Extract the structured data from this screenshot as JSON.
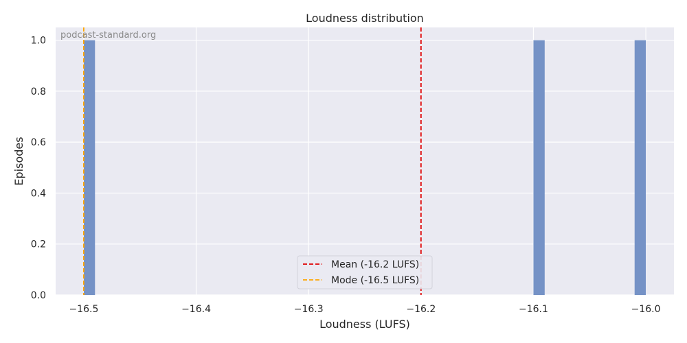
{
  "chart_data": {
    "type": "bar",
    "title": "Loudness distribution",
    "xlabel": "Loudness (LUFS)",
    "ylabel": "Episodes",
    "watermark": "podcast-standard.org",
    "xlim": [
      -16.525,
      -15.975
    ],
    "ylim": [
      0,
      1.05
    ],
    "xticks": [
      -16.5,
      -16.4,
      -16.3,
      -16.2,
      -16.1,
      -16.0
    ],
    "xtick_labels": [
      "−16.5",
      "−16.4",
      "−16.3",
      "−16.2",
      "−16.1",
      "−16.0"
    ],
    "yticks": [
      0,
      0.2,
      0.4,
      0.6,
      0.8,
      1.0
    ],
    "ytick_labels": [
      "0.0",
      "0.2",
      "0.4",
      "0.6",
      "0.8",
      "1.0"
    ],
    "grid": true,
    "bin_width": 0.01,
    "bars": [
      {
        "x_start": -16.5,
        "x_end": -16.49,
        "count": 1
      },
      {
        "x_start": -16.1,
        "x_end": -16.09,
        "count": 1
      },
      {
        "x_start": -16.01,
        "x_end": -16.0,
        "count": 1
      }
    ],
    "bar_color": "#7592c6",
    "reference_lines": [
      {
        "name": "Mean (-16.2 LUFS)",
        "x": -16.2,
        "color": "#e00000"
      },
      {
        "name": "Mode (-16.5 LUFS)",
        "x": -16.5,
        "color": "#ffa500"
      }
    ],
    "legend_position": "lower-center"
  }
}
